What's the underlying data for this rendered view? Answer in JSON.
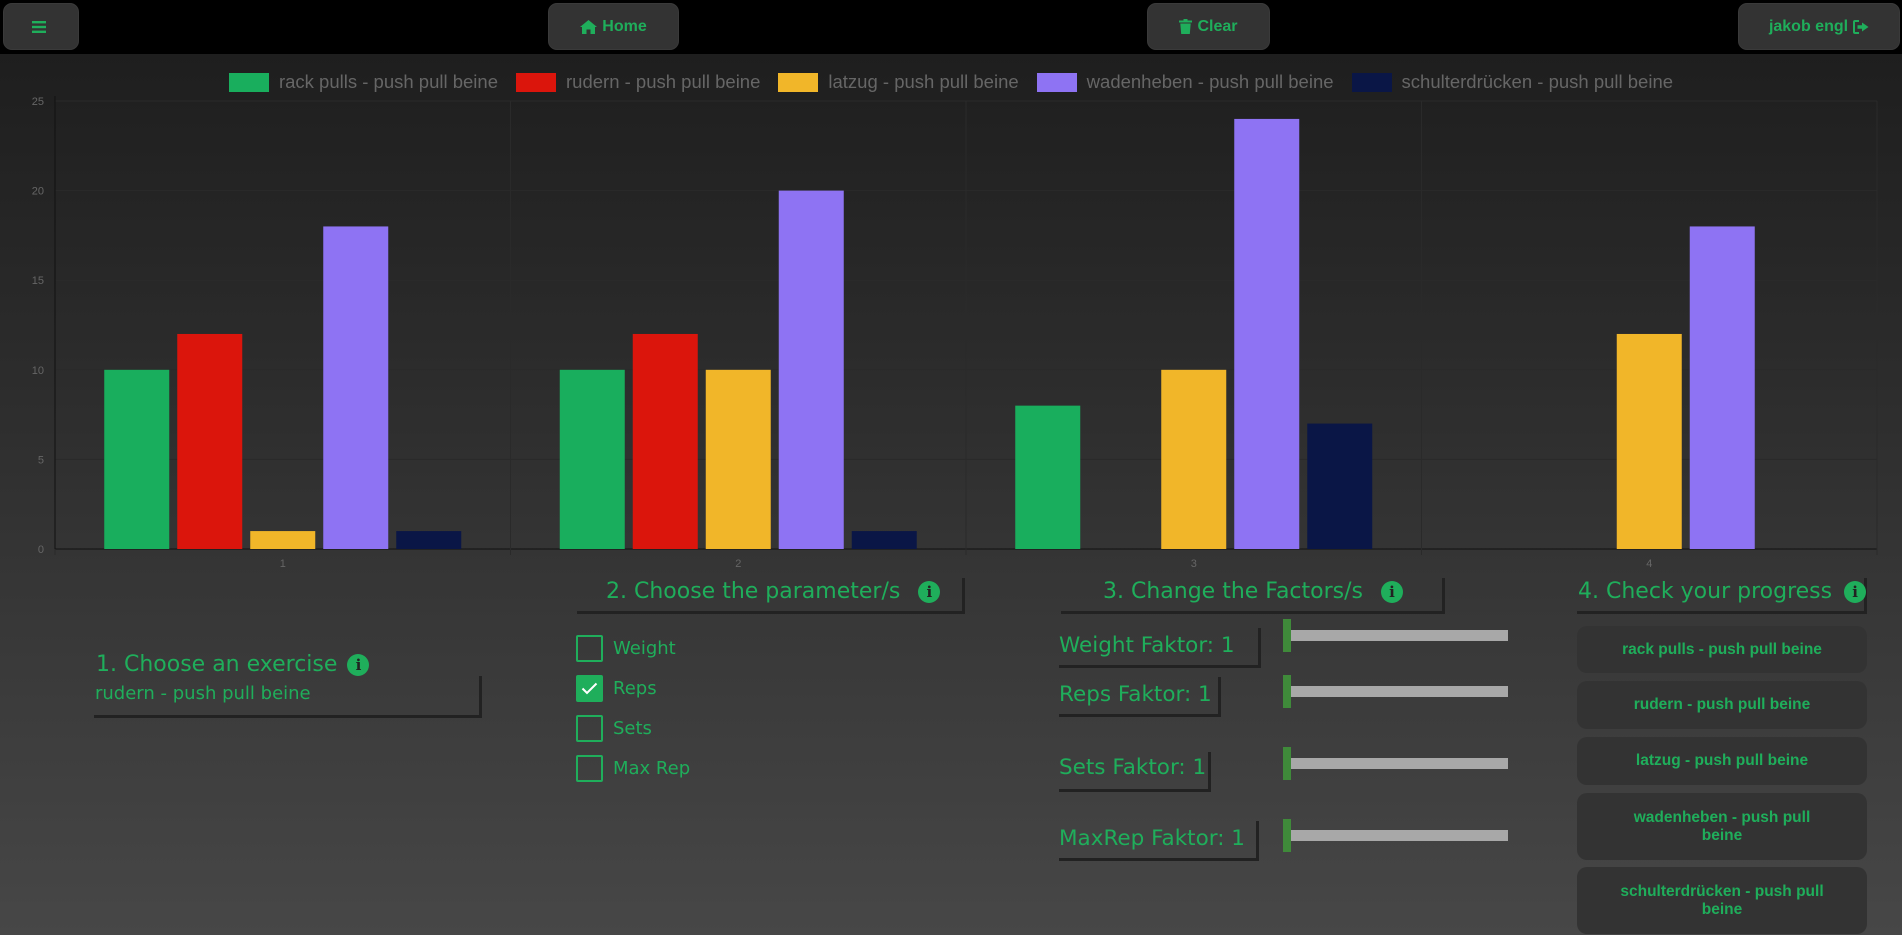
{
  "header": {
    "menu_icon": "hamburger-icon",
    "home_label": "Home",
    "home_icon": "home-icon",
    "clear_label": "Clear",
    "clear_icon": "trash-icon",
    "user_label": "jakob engl",
    "user_icon": "sign-out-icon",
    "accent_color": "#1fae5b"
  },
  "chart_data": {
    "type": "bar",
    "categories": [
      "1",
      "2",
      "3",
      "4"
    ],
    "series": [
      {
        "name": "rack pulls - push pull beine",
        "color": "#19ae5d",
        "values": [
          10,
          10,
          8,
          null
        ]
      },
      {
        "name": "rudern - push pull beine",
        "color": "#db150c",
        "values": [
          12,
          12,
          null,
          null
        ]
      },
      {
        "name": "latzug - push pull beine",
        "color": "#f1b629",
        "values": [
          1,
          10,
          10,
          12
        ]
      },
      {
        "name": "wadenheben - push pull beine",
        "color": "#8e73f3",
        "values": [
          18,
          20,
          24,
          18
        ]
      },
      {
        "name": "schulterdrücken - push pull beine",
        "color": "#0a1646",
        "values": [
          1,
          1,
          7,
          null
        ]
      }
    ],
    "yticks": [
      "0",
      "5",
      "10",
      "15",
      "20",
      "25"
    ],
    "ylim": [
      0,
      25
    ],
    "grid": true,
    "legend": "top-center"
  },
  "steps": {
    "exercise": {
      "title": "1. Choose an exercise",
      "selected": "rudern - push pull beine"
    },
    "parameters": {
      "title": "2. Choose the parameter/s",
      "options": [
        {
          "label": "Weight",
          "checked": false
        },
        {
          "label": "Reps",
          "checked": true
        },
        {
          "label": "Sets",
          "checked": false
        },
        {
          "label": "Max Rep",
          "checked": false
        }
      ]
    },
    "factors": {
      "title": "3. Change the Factors/s",
      "items": [
        {
          "label": "Weight Faktor: 1"
        },
        {
          "label": "Reps Faktor: 1"
        },
        {
          "label": "Sets Faktor: 1"
        },
        {
          "label": "MaxRep Faktor: 1"
        }
      ]
    },
    "progress": {
      "title": "4. Check your progress",
      "buttons": [
        "rack pulls - push pull beine",
        "rudern - push pull beine",
        "latzug - push pull beine",
        "wadenheben - push pull beine",
        "schulterdrücken - push pull beine"
      ]
    }
  }
}
